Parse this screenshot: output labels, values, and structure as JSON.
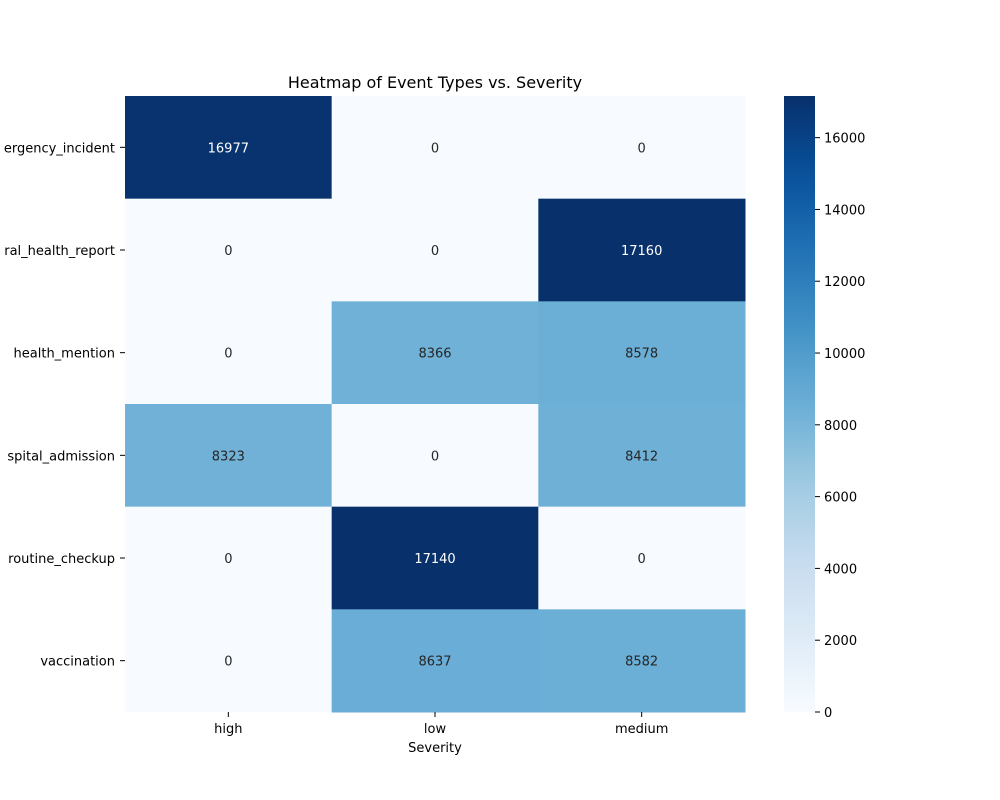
{
  "chart_data": {
    "type": "heatmap",
    "title": "Heatmap of Event Types vs. Severity",
    "xlabel": "Severity",
    "ylabel": "",
    "x_categories": [
      "high",
      "low",
      "medium"
    ],
    "y_categories": [
      "emergency_incident",
      "general_health_report",
      "health_mention",
      "hospital_admission",
      "routine_checkup",
      "vaccination"
    ],
    "y_tick_labels_visible": [
      "ergency_incident",
      "ral_health_report",
      "health_mention",
      "spital_admission",
      "routine_checkup",
      "vaccination"
    ],
    "values": [
      [
        16977,
        0,
        0
      ],
      [
        0,
        0,
        17160
      ],
      [
        0,
        8366,
        8578
      ],
      [
        8323,
        0,
        8412
      ],
      [
        0,
        17140,
        0
      ],
      [
        0,
        8637,
        8582
      ]
    ],
    "colormap": "Blues",
    "color_low": "#f7fbff",
    "color_high": "#08306b",
    "vmin": 0,
    "vmax": 17160,
    "colorbar_ticks": [
      0,
      2000,
      4000,
      6000,
      8000,
      10000,
      12000,
      14000,
      16000
    ],
    "annotate": true,
    "grid": false,
    "legend": "colorbar-right"
  }
}
